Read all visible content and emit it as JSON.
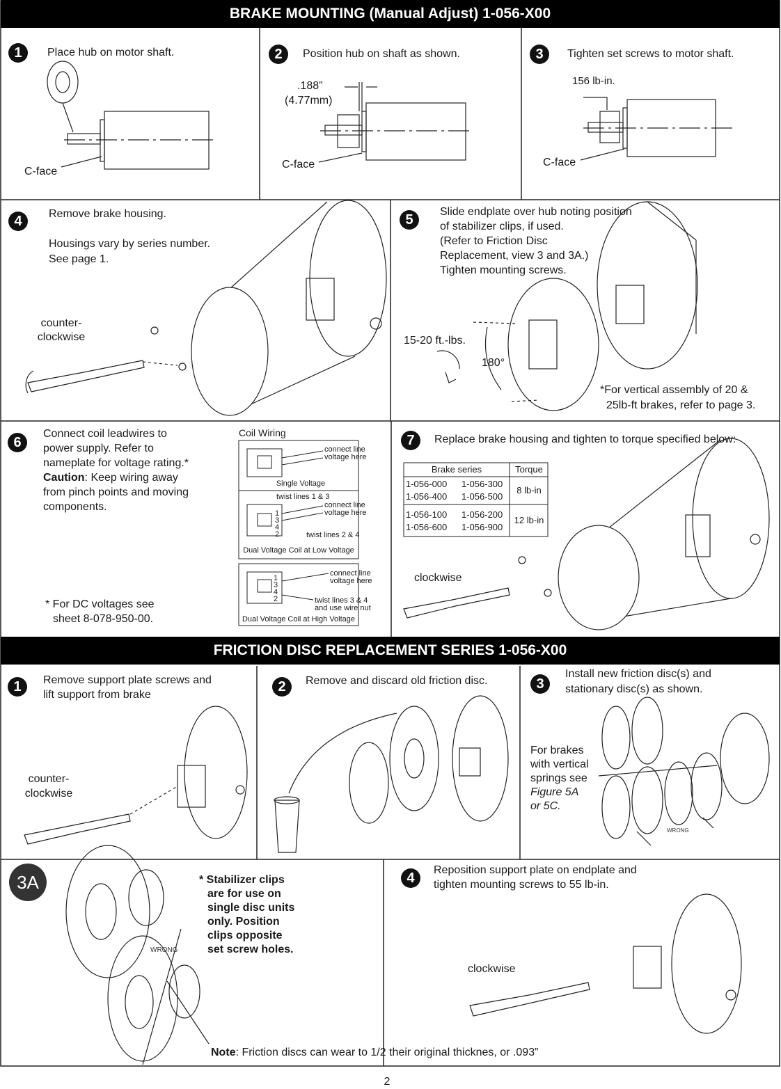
{
  "brake_mounting": {
    "title": "BRAKE MOUNTING (Manual Adjust) 1-056-X00",
    "steps": [
      {
        "number": "1",
        "text": [
          "Place hub on motor shaft."
        ],
        "labels": [
          "C-face"
        ]
      },
      {
        "number": "2",
        "text": [
          "Position hub on shaft as shown."
        ],
        "labels": [
          ".188”",
          "(4.77mm)",
          "C-face"
        ]
      },
      {
        "number": "3",
        "text": [
          "Tighten set screws to motor shaft."
        ],
        "labels": [
          "156 lb-in.",
          "C-face"
        ]
      },
      {
        "number": "4",
        "text": [
          "Remove brake housing.",
          "Housings vary by series number.",
          "See page 1."
        ],
        "labels": [
          "counter-",
          "clockwise"
        ]
      },
      {
        "number": "5",
        "text": [
          "Slide endplate over hub noting position",
          "of stabilizer clips, if used.",
          "(Refer to Friction Disc",
          "Replacement, view 3 and 3A.)",
          "Tighten mounting screws."
        ],
        "labels": [
          "15-20 ft.-lbs.",
          "180°"
        ],
        "note": [
          "*For vertical assembly of 20 &",
          "25lb-ft brakes, refer to page 3."
        ]
      },
      {
        "number": "6",
        "text": [
          "Connect coil leadwires to",
          "power supply. Refer to",
          "nameplate for voltage rating.*"
        ],
        "caution": {
          "label": "Caution",
          "text": [
            ": Keep wiring away",
            "from pinch points and moving",
            "components."
          ]
        },
        "note": [
          "* For DC voltages see",
          "sheet 8-078-950-00."
        ],
        "coil_wiring": {
          "title": "Coil Wiring",
          "diagrams": [
            {
              "caption": "Single Voltage",
              "labels": [
                "connect line",
                "voltage here"
              ]
            },
            {
              "caption": "Dual Voltage Coil at Low Voltage",
              "terminals": [
                "1",
                "3",
                "4",
                "2"
              ],
              "labels": [
                "twist lines 1 & 3",
                "connect line",
                "voltage here",
                "twist lines 2 & 4"
              ]
            },
            {
              "caption": "Dual Voltage Coil at High Voltage",
              "terminals": [
                "1",
                "3",
                "4",
                "2"
              ],
              "labels": [
                "connect line",
                "voltage here",
                "twist lines 3 & 4",
                "and use wire nut"
              ]
            }
          ]
        }
      },
      {
        "number": "7",
        "text": [
          "Replace brake housing and tighten to torque specified below:"
        ],
        "table": {
          "header": [
            "Brake series",
            "Torque"
          ],
          "rows": [
            {
              "series": [
                "1-056-000",
                "1-056-300",
                "1-056-400",
                "1-056-500"
              ],
              "torque": "8 lb-in"
            },
            {
              "series": [
                "1-056-100",
                "1-056-200",
                "1-056-600",
                "1-056-900"
              ],
              "torque": "12 lb-in"
            }
          ]
        },
        "labels": [
          "clockwise"
        ]
      }
    ]
  },
  "friction_disc_replacement": {
    "title": "FRICTION DISC REPLACEMENT SERIES 1-056-X00",
    "steps": [
      {
        "number": "1",
        "text": [
          "Remove support plate screws and",
          "lift support from brake"
        ],
        "labels": [
          "counter-",
          "clockwise"
        ]
      },
      {
        "number": "2",
        "text": [
          "Remove and discard old friction disc."
        ]
      },
      {
        "number": "3",
        "text": [
          "Install new friction disc(s) and",
          "stationary disc(s) as shown."
        ],
        "side_text": [
          "For brakes",
          "with vertical",
          "springs see"
        ],
        "reference": [
          "Figure 5A",
          "or 5C."
        ],
        "labels": [
          "WRONG"
        ]
      },
      {
        "number": "4",
        "text": [
          "Reposition support plate on endplate and",
          "tighten mounting screws to 55 lb-in."
        ],
        "labels": [
          "clockwise"
        ]
      }
    ],
    "view_3a": {
      "label": "3A",
      "text": [
        "* Stabilizer clips",
        "are for use on",
        "single disc units",
        "only. Position",
        "clips opposite",
        "set screw holes."
      ],
      "labels": [
        "WRONG"
      ]
    }
  },
  "note": {
    "label": "Note",
    "text": ": Friction discs can wear to 1/2 their original thicknes, or .093”"
  },
  "page_number": "2"
}
